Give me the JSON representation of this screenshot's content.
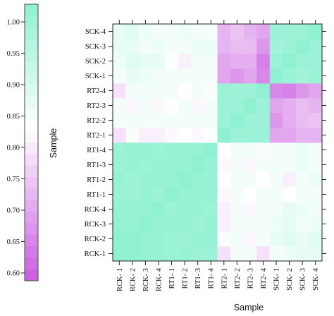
{
  "chart_data": {
    "type": "heatmap",
    "x_labels": [
      "RCK- 1",
      "RCK- 2",
      "RCK- 3",
      "RCK- 4",
      "RT1- 1",
      "RT1- 2",
      "RT1- 3",
      "RT1- 4",
      "RT2- 1",
      "RT2- 2",
      "RT2- 3",
      "RT2- 4",
      "SCK- 1",
      "SCK- 2",
      "SCK- 3",
      "SCK- 4"
    ],
    "y_labels": [
      "RCK-1",
      "RCK-2",
      "RCK-3",
      "RCK-4",
      "RT1-1",
      "RT1-2",
      "RT1-3",
      "RT1-4",
      "RT2-1",
      "RT2-2",
      "RT2-3",
      "RT2-4",
      "SCK-1",
      "SCK-2",
      "SCK-3",
      "SCK-4"
    ],
    "xlabel": "Sample",
    "ylabel": "Sample",
    "colorbar": {
      "range": [
        0.6,
        1.0
      ],
      "ticks": [
        "0.60",
        "0.65",
        "0.70",
        "0.75",
        "0.80",
        "0.85",
        "0.90",
        "0.95",
        "1.00"
      ],
      "colors": {
        "low": "#c85ce0",
        "mid": "#ffffff",
        "high": "#90f0d2"
      }
    },
    "values": [
      [
        1.0,
        1.0,
        0.99,
        0.99,
        0.98,
        0.99,
        0.98,
        0.98,
        0.78,
        0.84,
        0.84,
        0.78,
        0.84,
        0.85,
        0.86,
        0.86
      ],
      [
        1.0,
        1.0,
        0.99,
        0.99,
        0.98,
        0.98,
        0.99,
        0.99,
        0.83,
        0.84,
        0.81,
        0.84,
        0.86,
        0.87,
        0.86,
        0.87
      ],
      [
        0.99,
        0.99,
        1.0,
        0.99,
        0.99,
        0.99,
        0.98,
        0.99,
        0.8,
        0.84,
        0.84,
        0.84,
        0.85,
        0.86,
        0.84,
        0.85
      ],
      [
        0.99,
        0.99,
        0.99,
        1.0,
        0.98,
        0.99,
        0.99,
        0.98,
        0.8,
        0.84,
        0.81,
        0.84,
        0.84,
        0.86,
        0.85,
        0.84
      ],
      [
        0.98,
        0.98,
        0.99,
        0.98,
        1.0,
        0.99,
        0.99,
        0.99,
        0.81,
        0.84,
        0.82,
        0.84,
        0.84,
        0.82,
        0.84,
        0.84
      ],
      [
        0.99,
        0.98,
        0.99,
        0.99,
        0.99,
        1.0,
        0.99,
        0.99,
        0.82,
        0.84,
        0.84,
        0.82,
        0.84,
        0.8,
        0.84,
        0.85
      ],
      [
        0.98,
        0.99,
        0.98,
        0.99,
        0.99,
        0.99,
        1.0,
        0.99,
        0.81,
        0.84,
        0.81,
        0.84,
        0.84,
        0.84,
        0.85,
        0.84
      ],
      [
        0.98,
        0.99,
        0.99,
        0.98,
        0.99,
        0.99,
        0.99,
        1.0,
        0.82,
        0.84,
        0.84,
        0.83,
        0.84,
        0.84,
        0.85,
        0.84
      ],
      [
        0.78,
        0.83,
        0.8,
        0.8,
        0.81,
        0.82,
        0.81,
        0.82,
        1.0,
        0.98,
        0.98,
        0.98,
        0.7,
        0.7,
        0.72,
        0.72
      ],
      [
        0.84,
        0.84,
        0.84,
        0.84,
        0.84,
        0.84,
        0.84,
        0.84,
        0.98,
        1.0,
        0.98,
        0.98,
        0.68,
        0.71,
        0.73,
        0.74
      ],
      [
        0.84,
        0.81,
        0.84,
        0.81,
        0.82,
        0.84,
        0.81,
        0.84,
        0.98,
        0.98,
        1.0,
        0.98,
        0.7,
        0.71,
        0.73,
        0.72
      ],
      [
        0.78,
        0.84,
        0.84,
        0.84,
        0.84,
        0.82,
        0.84,
        0.83,
        0.98,
        0.98,
        0.98,
        1.0,
        0.66,
        0.65,
        0.68,
        0.7
      ],
      [
        0.84,
        0.86,
        0.85,
        0.84,
        0.84,
        0.84,
        0.84,
        0.84,
        0.7,
        0.68,
        0.7,
        0.66,
        1.0,
        0.98,
        0.97,
        0.98
      ],
      [
        0.85,
        0.87,
        0.86,
        0.86,
        0.82,
        0.8,
        0.84,
        0.84,
        0.7,
        0.71,
        0.71,
        0.65,
        0.98,
        1.0,
        0.98,
        0.98
      ],
      [
        0.86,
        0.86,
        0.84,
        0.85,
        0.84,
        0.84,
        0.85,
        0.85,
        0.72,
        0.73,
        0.73,
        0.68,
        0.97,
        0.98,
        1.0,
        0.98
      ],
      [
        0.86,
        0.87,
        0.85,
        0.84,
        0.84,
        0.85,
        0.84,
        0.84,
        0.72,
        0.74,
        0.72,
        0.7,
        0.98,
        0.98,
        0.98,
        1.0
      ]
    ]
  }
}
